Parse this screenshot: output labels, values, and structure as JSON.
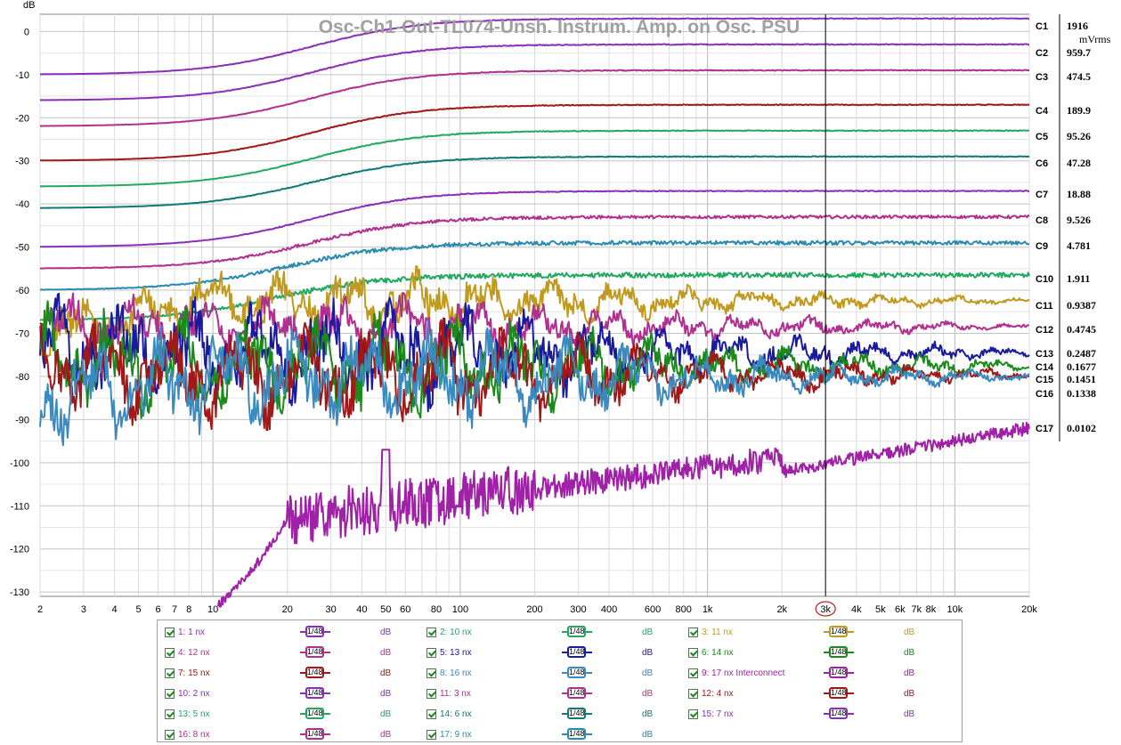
{
  "chart_data": {
    "type": "line",
    "title": "Osc-Ch1-Out-TL074-Unsh. Instrum. Amp. on Osc. PSU",
    "xlabel": "",
    "ylabel": "dB",
    "xscale": "log",
    "xlim": [
      2,
      20000
    ],
    "ylim": [
      -131,
      4
    ],
    "grid": true,
    "x_ticks": [
      {
        "v": 2,
        "label": "2"
      },
      {
        "v": 3,
        "label": "3"
      },
      {
        "v": 4,
        "label": "4"
      },
      {
        "v": 5,
        "label": "5"
      },
      {
        "v": 6,
        "label": "6"
      },
      {
        "v": 7,
        "label": "7"
      },
      {
        "v": 8,
        "label": "8"
      },
      {
        "v": 10,
        "label": "10"
      },
      {
        "v": 20,
        "label": "20"
      },
      {
        "v": 30,
        "label": "30"
      },
      {
        "v": 40,
        "label": "40"
      },
      {
        "v": 50,
        "label": "50"
      },
      {
        "v": 60,
        "label": "60"
      },
      {
        "v": 80,
        "label": "80"
      },
      {
        "v": 100,
        "label": "100"
      },
      {
        "v": 200,
        "label": "200"
      },
      {
        "v": 300,
        "label": "300"
      },
      {
        "v": 400,
        "label": "400"
      },
      {
        "v": 600,
        "label": "600"
      },
      {
        "v": 800,
        "label": "800"
      },
      {
        "v": 1000,
        "label": "1k"
      },
      {
        "v": 2000,
        "label": "2k"
      },
      {
        "v": 3000,
        "label": "3k"
      },
      {
        "v": 4000,
        "label": "4k"
      },
      {
        "v": 5000,
        "label": "5k"
      },
      {
        "v": 6000,
        "label": "6k"
      },
      {
        "v": 7000,
        "label": "7k"
      },
      {
        "v": 8000,
        "label": "8k"
      },
      {
        "v": 10000,
        "label": "10k"
      },
      {
        "v": 20000,
        "label": "20k"
      }
    ],
    "y_ticks": [
      {
        "v": 0,
        "label": "0"
      },
      {
        "v": -10,
        "label": "-10"
      },
      {
        "v": -20,
        "label": "-20"
      },
      {
        "v": -30,
        "label": "-30"
      },
      {
        "v": -40,
        "label": "-40"
      },
      {
        "v": -50,
        "label": "-50"
      },
      {
        "v": -60,
        "label": "-60"
      },
      {
        "v": -70,
        "label": "-70"
      },
      {
        "v": -80,
        "label": "-80"
      },
      {
        "v": -90,
        "label": "-90"
      },
      {
        "v": -100,
        "label": "-100"
      },
      {
        "v": -110,
        "label": "-110"
      },
      {
        "v": -120,
        "label": "-120"
      },
      {
        "v": -130,
        "label": "-130"
      }
    ],
    "cursor": {
      "x": 3000,
      "label": "3k"
    },
    "readout_unit": "mVrms",
    "series": [
      {
        "label": "C1",
        "color": "#8b2fb8",
        "style": "flat",
        "level": 3.0,
        "start": -10,
        "knee": 25,
        "readout": "1916"
      },
      {
        "label": "C2",
        "color": "#8b2fb8",
        "style": "flat",
        "level": -3.0,
        "start": -16,
        "knee": 25,
        "readout": "959.7"
      },
      {
        "label": "C3",
        "color": "#b0308f",
        "style": "flat",
        "level": -9.0,
        "start": -22,
        "knee": 25,
        "readout": "474.5"
      },
      {
        "label": "C4",
        "color": "#a01818",
        "style": "flat",
        "level": -17.0,
        "start": -30,
        "knee": 25,
        "readout": "189.9"
      },
      {
        "label": "C5",
        "color": "#22a860",
        "style": "flat",
        "level": -23.0,
        "start": -36,
        "knee": 25,
        "readout": "95.26"
      },
      {
        "label": "C6",
        "color": "#107878",
        "style": "flat",
        "level": -29.0,
        "start": -41,
        "knee": 25,
        "readout": "47.28"
      },
      {
        "label": "C7",
        "color": "#8b2fb8",
        "style": "flat",
        "level": -37.0,
        "start": -50,
        "knee": 25,
        "readout": "18.88"
      },
      {
        "label": "C8",
        "color": "#b0308f",
        "style": "flat",
        "level": -43.0,
        "start": -55,
        "knee": 25,
        "readout": "9.526"
      },
      {
        "label": "C9",
        "color": "#2a8ab0",
        "style": "flat",
        "level": -49.0,
        "start": -60,
        "knee": 20,
        "readout": "4.781"
      },
      {
        "label": "C10",
        "color": "#22a860",
        "style": "flat",
        "level": -56.5,
        "start": -67,
        "knee": 18,
        "readout": "1.911"
      },
      {
        "label": "C11",
        "color": "#c09a20",
        "style": "noise",
        "level": -62.5,
        "start": -70,
        "knee": 10,
        "readout": "0.9387"
      },
      {
        "label": "C12",
        "color": "#b0308f",
        "style": "noise",
        "level": -68.5,
        "start": -68,
        "knee": 10,
        "readout": "0.4745"
      },
      {
        "label": "C13",
        "color": "#1a1aa0",
        "style": "noise",
        "level": -74.5,
        "start": -73,
        "knee": 10,
        "readout": "0.2487"
      },
      {
        "label": "C14",
        "color": "#1a8a1a",
        "style": "noise",
        "level": -77.5,
        "start": -76,
        "knee": 10,
        "readout": "0.1677"
      },
      {
        "label": "C15",
        "color": "#a01818",
        "style": "noise",
        "level": -79.5,
        "start": -77,
        "knee": 10,
        "readout": "0.1451"
      },
      {
        "label": "C16",
        "color": "#3a8ac0",
        "style": "noise",
        "level": -80.0,
        "start": -85,
        "knee": 10,
        "readout": "0.1338"
      },
      {
        "label": "C17",
        "color": "#a020a8",
        "style": "rise",
        "level": -92.0,
        "start": -133,
        "knee": 11,
        "readout": "0.0102"
      }
    ]
  },
  "legend": {
    "items": [
      {
        "name": "1: 1 nx",
        "color": "#8b2fb8",
        "smooth": "1/48",
        "unit": "dB"
      },
      {
        "name": "2: 10 nx",
        "color": "#22a860",
        "smooth": "1/48",
        "unit": "dB"
      },
      {
        "name": "3: 11 nx",
        "color": "#c09a20",
        "smooth": "1/48",
        "unit": "dB"
      },
      {
        "name": "4: 12 nx",
        "color": "#b0308f",
        "smooth": "1/48",
        "unit": "dB"
      },
      {
        "name": "5: 13 nx",
        "color": "#1a1aa0",
        "smooth": "1/48",
        "unit": "dB"
      },
      {
        "name": "6: 14 nx",
        "color": "#1a8a1a",
        "smooth": "1/48",
        "unit": "dB"
      },
      {
        "name": "7: 15 nx",
        "color": "#a01818",
        "smooth": "1/48",
        "unit": "dB"
      },
      {
        "name": "8: 16 nx",
        "color": "#3a8ac0",
        "smooth": "1/48",
        "unit": "dB"
      },
      {
        "name": "9: 17 nx Interconnect",
        "color": "#a020a8",
        "smooth": "1/48",
        "unit": "dB"
      },
      {
        "name": "10: 2 nx",
        "color": "#8b2fb8",
        "smooth": "1/48",
        "unit": "dB"
      },
      {
        "name": "11: 3 nx",
        "color": "#b0308f",
        "smooth": "1/48",
        "unit": "dB"
      },
      {
        "name": "12: 4 nx",
        "color": "#a01818",
        "smooth": "1/48",
        "unit": "dB"
      },
      {
        "name": "13: 5 nx",
        "color": "#22a860",
        "smooth": "1/48",
        "unit": "dB"
      },
      {
        "name": "14: 6 nx",
        "color": "#107878",
        "smooth": "1/48",
        "unit": "dB"
      },
      {
        "name": "15: 7 nx",
        "color": "#8b2fb8",
        "smooth": "1/48",
        "unit": "dB"
      },
      {
        "name": "16: 8 nx",
        "color": "#b0308f",
        "smooth": "1/48",
        "unit": "dB"
      },
      {
        "name": "17: 9 nx",
        "color": "#2a8ab0",
        "smooth": "1/48",
        "unit": "dB"
      }
    ]
  }
}
